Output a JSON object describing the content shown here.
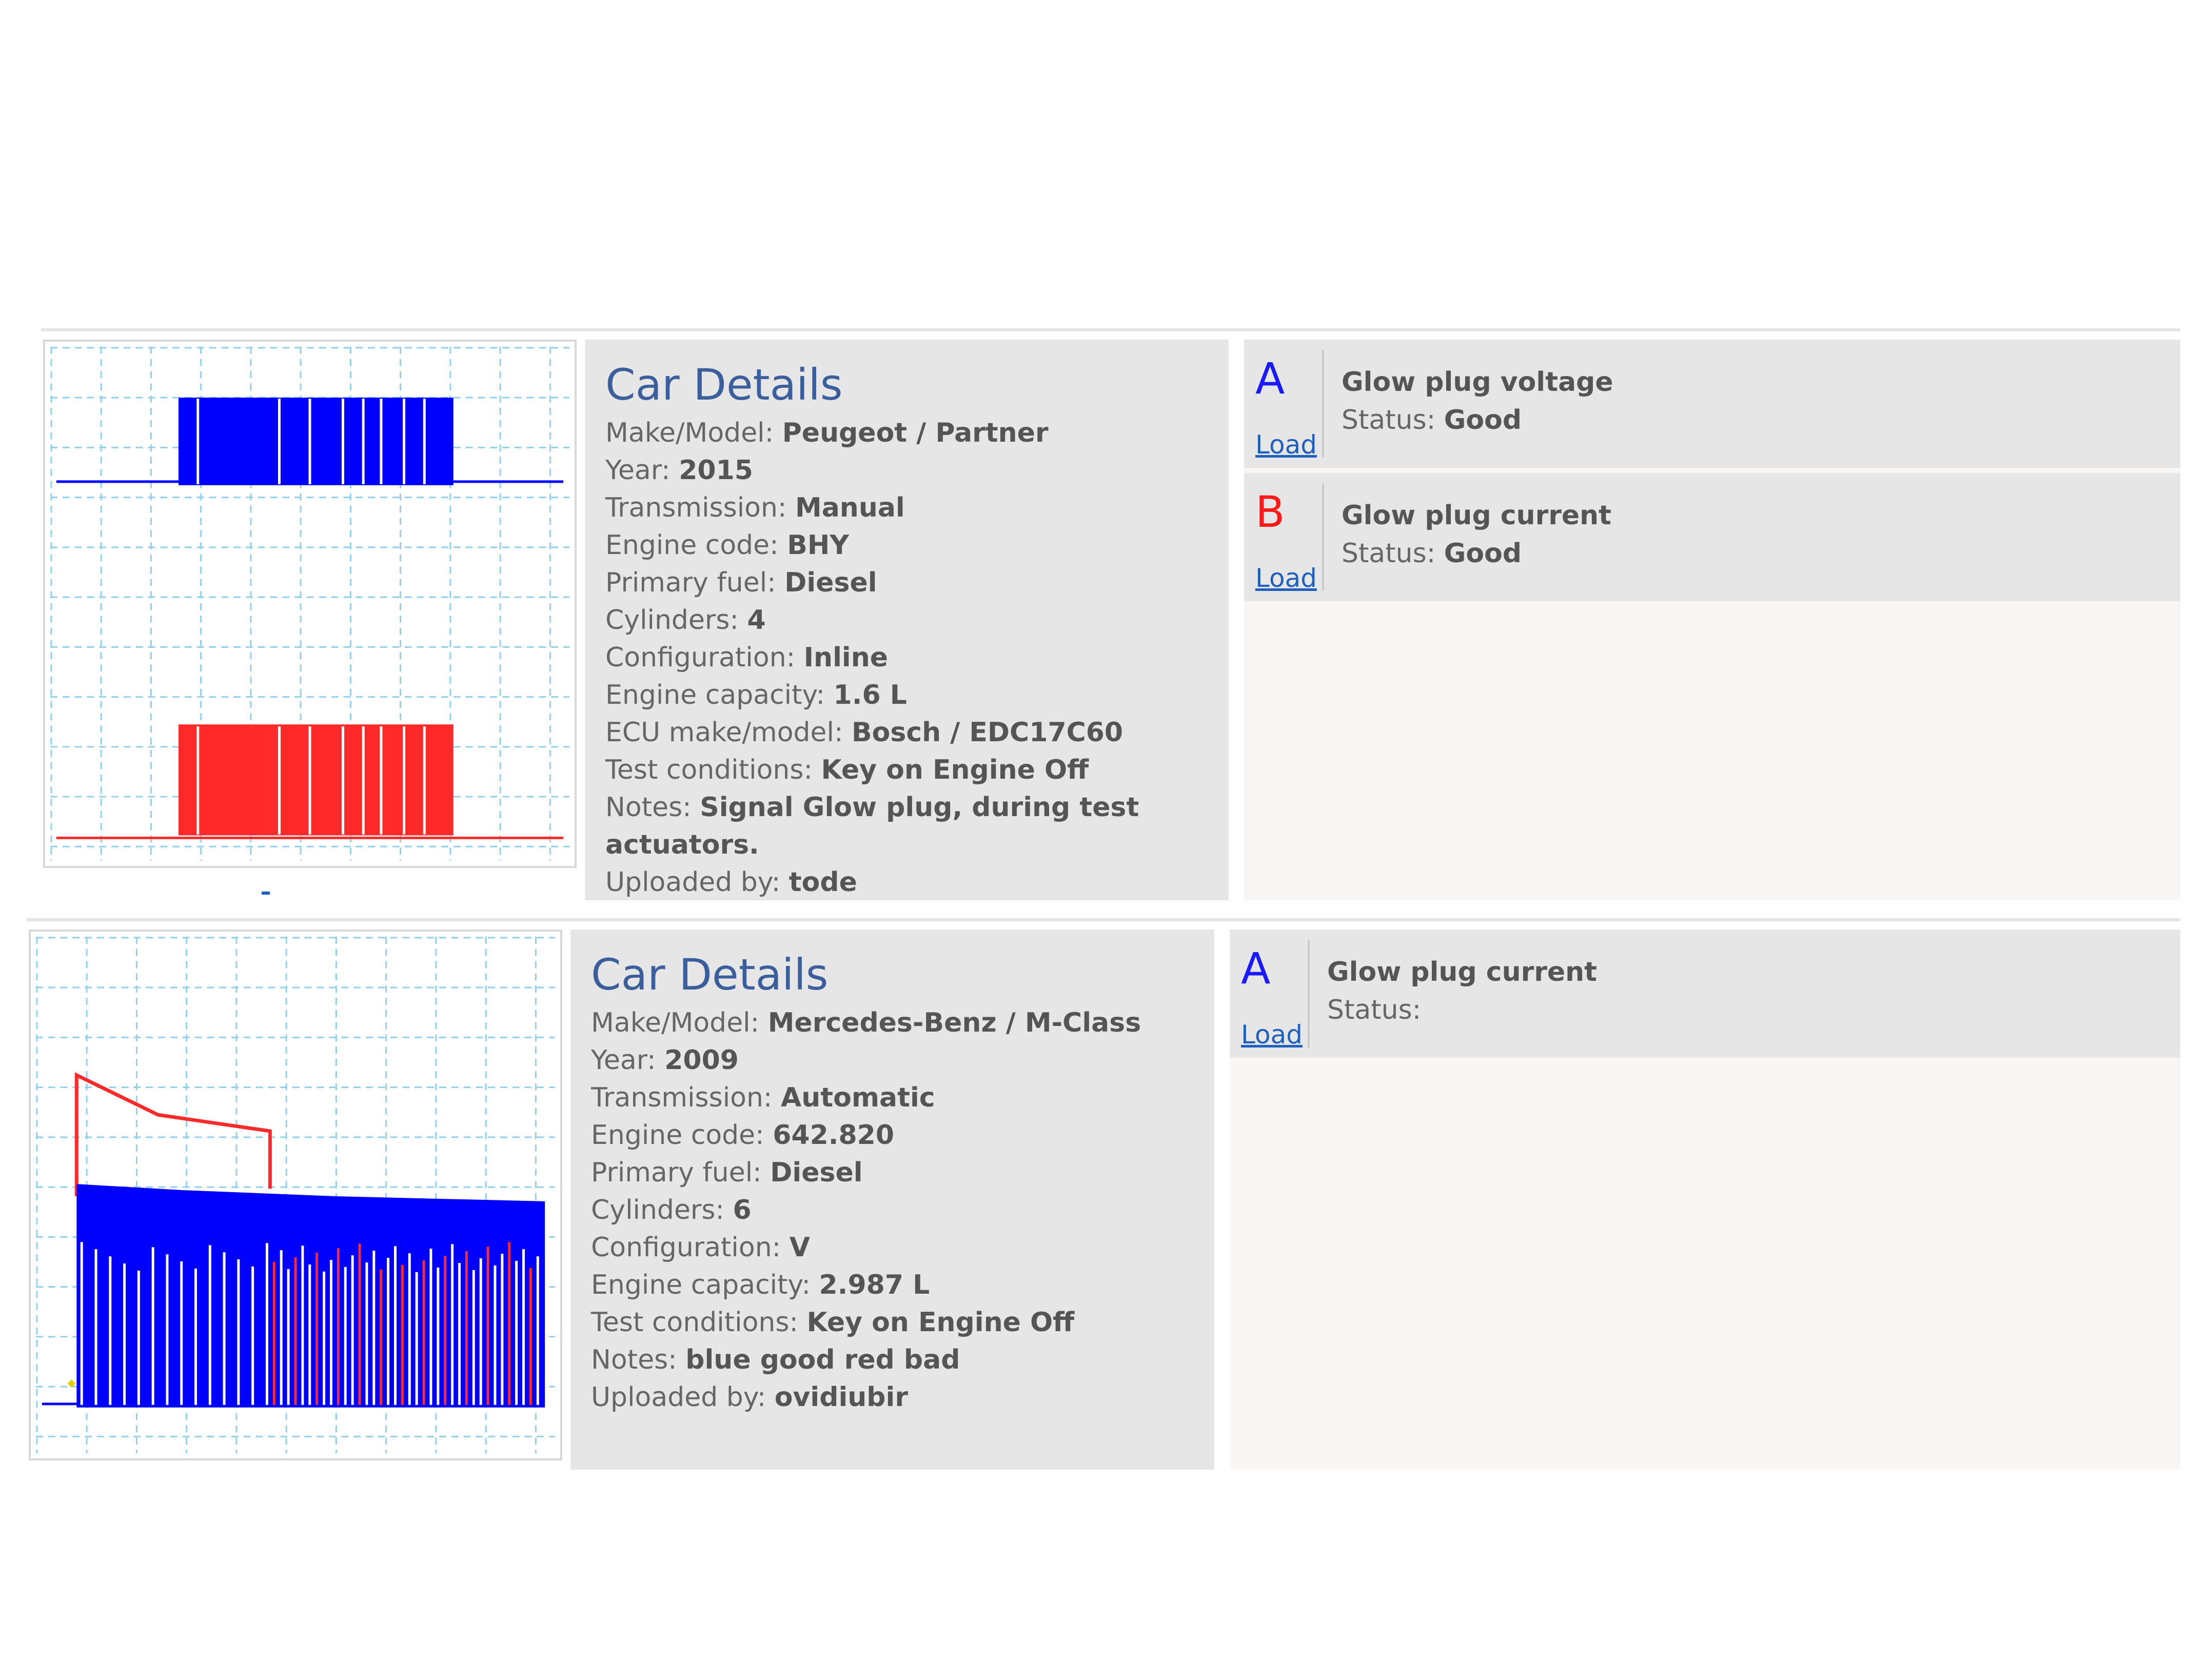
{
  "cards": [
    {
      "details_title": "Car Details",
      "make_model_label": "Make/Model:",
      "make_model": "Peugeot / Partner",
      "year_label": "Year:",
      "year": "2015",
      "transmission_label": "Transmission:",
      "transmission": "Manual",
      "engine_code_label": "Engine code:",
      "engine_code": "BHY",
      "primary_fuel_label": "Primary fuel:",
      "primary_fuel": "Diesel",
      "cylinders_label": "Cylinders:",
      "cylinders": "4",
      "configuration_label": "Configuration:",
      "configuration": "Inline",
      "engine_capacity_label": "Engine capacity:",
      "engine_capacity": "1.6 L",
      "ecu_label": "ECU make/model:",
      "ecu": "Bosch / EDC17C60",
      "test_conditions_label": "Test conditions:",
      "test_conditions": "Key on Engine Off",
      "notes_label": "Notes:",
      "notes": "Signal Glow plug, during test actuators.",
      "uploaded_by_label": "Uploaded by:",
      "uploaded_by": "tode",
      "channels": [
        {
          "letter": "A",
          "color": "#1a1aff",
          "load": "Load",
          "title": "Glow plug voltage",
          "status_label": "Status:",
          "status": "Good"
        },
        {
          "letter": "B",
          "color": "#ff1a1a",
          "load": "Load",
          "title": "Glow plug current",
          "status_label": "Status:",
          "status": "Good"
        }
      ]
    },
    {
      "details_title": "Car Details",
      "make_model_label": "Make/Model:",
      "make_model": "Mercedes-Benz / M-Class",
      "year_label": "Year:",
      "year": "2009",
      "transmission_label": "Transmission:",
      "transmission": "Automatic",
      "engine_code_label": "Engine code:",
      "engine_code": "642.820",
      "primary_fuel_label": "Primary fuel:",
      "primary_fuel": "Diesel",
      "cylinders_label": "Cylinders:",
      "cylinders": "6",
      "configuration_label": "Configuration:",
      "configuration": "V",
      "engine_capacity_label": "Engine capacity:",
      "engine_capacity": "2.987 L",
      "test_conditions_label": "Test conditions:",
      "test_conditions": "Key on Engine Off",
      "notes_label": "Notes:",
      "notes": "blue good red bad",
      "uploaded_by_label": "Uploaded by:",
      "uploaded_by": "ovidiubir",
      "channels": [
        {
          "letter": "A",
          "color": "#1a1aff",
          "load": "Load",
          "title": "Glow plug current",
          "status_label": "Status:",
          "status": ""
        }
      ]
    }
  ],
  "colors": {
    "trace_blue": "#0000ff",
    "trace_red": "#ff2a2a",
    "grid": "#8fd0ef",
    "link": "#1f5fbf",
    "heading": "#3a5f9c"
  },
  "icons": [
    "waveform-thumbnail"
  ]
}
